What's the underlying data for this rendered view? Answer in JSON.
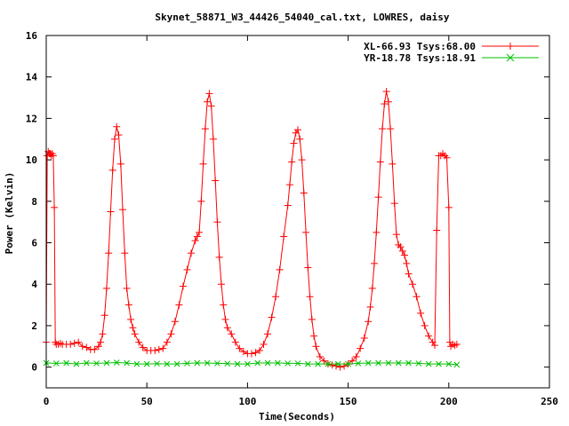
{
  "chart_data": {
    "type": "line",
    "title": "Skynet_58871_W3_44426_54040_cal.txt, LOWRES, daisy",
    "xlabel": "Time(Seconds)",
    "ylabel": "Power (Kelvin)",
    "xlim": [
      0,
      250
    ],
    "ylim": [
      -1,
      16
    ],
    "xticks": [
      0,
      50,
      100,
      150,
      200,
      250
    ],
    "yticks": [
      0,
      2,
      4,
      6,
      8,
      10,
      12,
      14,
      16
    ],
    "xtick_labels": [
      "0",
      "50",
      "100",
      "150",
      "200",
      "250"
    ],
    "ytick_labels": [
      "0",
      "2",
      "4",
      "6",
      "8",
      "10",
      "12",
      "14",
      "16"
    ],
    "grid": false,
    "legend_position": "top-right",
    "series": [
      {
        "name": "XL-66.93 Tsys:68.00",
        "color": "#ff0000",
        "marker": "plus",
        "x": [
          0,
          0.5,
          1,
          1.5,
          2,
          2.5,
          3,
          3.5,
          4,
          4.5,
          5,
          6,
          7,
          8,
          10,
          12,
          14,
          16,
          18,
          20,
          22,
          24,
          26,
          27,
          28,
          29,
          30,
          31,
          32,
          33,
          34,
          35,
          36,
          37,
          38,
          39,
          40,
          41,
          42,
          43,
          44,
          46,
          48,
          50,
          52,
          54,
          56,
          58,
          60,
          62,
          64,
          66,
          68,
          70,
          72,
          74,
          75,
          76,
          77,
          78,
          79,
          80,
          81,
          82,
          83,
          84,
          85,
          86,
          87,
          88,
          89,
          90,
          92,
          94,
          96,
          98,
          100,
          102,
          104,
          106,
          108,
          110,
          112,
          114,
          116,
          118,
          120,
          121,
          122,
          123,
          124,
          125,
          126,
          127,
          128,
          129,
          130,
          131,
          132,
          133,
          134,
          136,
          138,
          140,
          142,
          144,
          146,
          148,
          150,
          152,
          154,
          156,
          158,
          160,
          161,
          162,
          163,
          164,
          165,
          166,
          167,
          168,
          169,
          170,
          171,
          172,
          173,
          174,
          175,
          176,
          177,
          178,
          179,
          180,
          182,
          184,
          186,
          188,
          190,
          192,
          193,
          194,
          195,
          196,
          197,
          198,
          199,
          200,
          200.5,
          201,
          202,
          203,
          204
        ],
        "y": [
          1.2,
          10.2,
          10.4,
          10.3,
          10.3,
          10.2,
          10.3,
          10.2,
          7.7,
          1.2,
          1.1,
          1.1,
          1.15,
          1.1,
          1.1,
          1.1,
          1.15,
          1.2,
          1.0,
          0.95,
          0.85,
          0.85,
          1.0,
          1.2,
          1.6,
          2.5,
          3.8,
          5.5,
          7.5,
          9.5,
          11.0,
          11.6,
          11.2,
          9.8,
          7.6,
          5.5,
          3.8,
          3.0,
          2.3,
          1.9,
          1.6,
          1.2,
          0.95,
          0.8,
          0.8,
          0.8,
          0.85,
          0.9,
          1.2,
          1.6,
          2.2,
          3.0,
          3.9,
          4.7,
          5.5,
          6.1,
          6.3,
          6.5,
          8.0,
          9.8,
          11.5,
          12.8,
          13.2,
          12.6,
          11.0,
          9.0,
          7.0,
          5.3,
          4.0,
          3.0,
          2.3,
          1.9,
          1.6,
          1.2,
          0.9,
          0.75,
          0.65,
          0.65,
          0.7,
          0.8,
          1.1,
          1.6,
          2.4,
          3.4,
          4.7,
          6.3,
          7.8,
          8.8,
          9.9,
          10.8,
          11.3,
          11.45,
          11.0,
          10.0,
          8.4,
          6.5,
          4.8,
          3.4,
          2.3,
          1.5,
          1.0,
          0.5,
          0.3,
          0.15,
          0.1,
          0.05,
          0.0,
          0.05,
          0.15,
          0.3,
          0.5,
          0.9,
          1.4,
          2.2,
          2.9,
          3.8,
          5.0,
          6.5,
          8.2,
          9.9,
          11.5,
          12.7,
          13.3,
          12.8,
          11.5,
          9.8,
          7.9,
          6.4,
          5.9,
          5.8,
          5.6,
          5.4,
          5.0,
          4.5,
          4.0,
          3.4,
          2.6,
          2.0,
          1.5,
          1.2,
          1.05,
          6.6,
          10.2,
          10.2,
          10.3,
          10.2,
          10.1,
          7.7,
          1.2,
          1.0,
          1.1,
          1.05,
          1.1
        ]
      },
      {
        "name": "YR-18.78 Tsys:18.91",
        "color": "#00c000",
        "marker": "cross",
        "x": [
          0,
          5,
          10,
          15,
          20,
          25,
          30,
          35,
          40,
          45,
          50,
          55,
          60,
          65,
          70,
          75,
          80,
          85,
          90,
          95,
          100,
          105,
          110,
          115,
          120,
          125,
          130,
          135,
          140,
          145,
          150,
          155,
          160,
          165,
          170,
          175,
          180,
          185,
          190,
          195,
          200,
          204
        ],
        "y": [
          0.2,
          0.18,
          0.2,
          0.15,
          0.2,
          0.18,
          0.2,
          0.22,
          0.2,
          0.15,
          0.15,
          0.17,
          0.15,
          0.15,
          0.18,
          0.2,
          0.2,
          0.18,
          0.17,
          0.15,
          0.15,
          0.2,
          0.2,
          0.2,
          0.18,
          0.18,
          0.15,
          0.15,
          0.15,
          0.15,
          0.15,
          0.18,
          0.2,
          0.2,
          0.2,
          0.2,
          0.2,
          0.18,
          0.15,
          0.15,
          0.15,
          0.12
        ]
      }
    ]
  },
  "colors": {
    "series_1": "#ff0000",
    "series_2": "#00c000",
    "axes": "#000000",
    "background": "#ffffff"
  }
}
